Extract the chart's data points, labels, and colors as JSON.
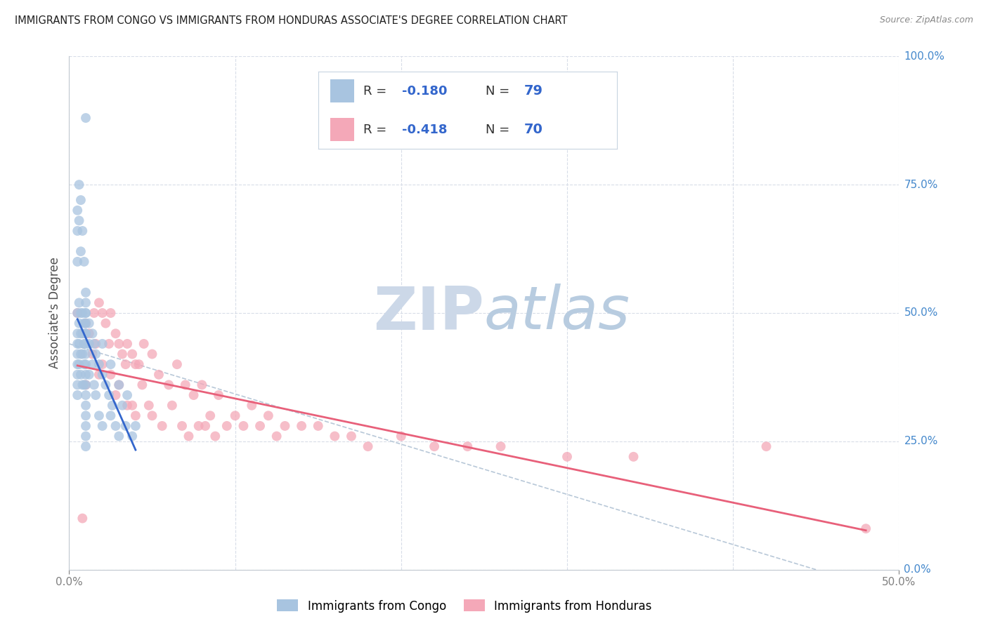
{
  "title": "IMMIGRANTS FROM CONGO VS IMMIGRANTS FROM HONDURAS ASSOCIATE'S DEGREE CORRELATION CHART",
  "source": "Source: ZipAtlas.com",
  "ylabel": "Associate's Degree",
  "right_yticklabels": [
    "0.0%",
    "25.0%",
    "50.0%",
    "75.0%",
    "100.0%"
  ],
  "right_ytick_vals": [
    0.0,
    0.25,
    0.5,
    0.75,
    1.0
  ],
  "xlim": [
    0.0,
    0.5
  ],
  "ylim": [
    0.0,
    1.0
  ],
  "xtick_positions": [
    0.0,
    0.1,
    0.2,
    0.3,
    0.4,
    0.5
  ],
  "xtick_labels": [
    "0.0%",
    "",
    "",
    "",
    "",
    "50.0%"
  ],
  "legend_r_congo": "-0.180",
  "legend_n_congo": "79",
  "legend_r_honduras": "-0.418",
  "legend_n_honduras": "70",
  "congo_color": "#a8c4e0",
  "honduras_color": "#f4a8b8",
  "congo_line_color": "#3366cc",
  "honduras_line_color": "#e8607a",
  "dashed_line_color": "#b8c8d8",
  "watermark_zip_color": "#c8d8e8",
  "watermark_atlas_color": "#b0c4d8",
  "background_color": "#ffffff",
  "grid_color": "#d8dde8",
  "title_color": "#202020",
  "right_axis_color": "#4488cc",
  "legend_text_color": "#222222",
  "legend_value_color": "#3366cc",
  "congo_scatter_x": [
    0.005,
    0.005,
    0.005,
    0.005,
    0.005,
    0.005,
    0.005,
    0.005,
    0.006,
    0.006,
    0.006,
    0.006,
    0.007,
    0.007,
    0.007,
    0.007,
    0.008,
    0.008,
    0.008,
    0.008,
    0.009,
    0.009,
    0.009,
    0.009,
    0.01,
    0.01,
    0.01,
    0.01,
    0.01,
    0.01,
    0.01,
    0.01,
    0.01,
    0.01,
    0.01,
    0.01,
    0.01,
    0.01,
    0.01,
    0.01,
    0.01,
    0.01,
    0.012,
    0.012,
    0.012,
    0.014,
    0.014,
    0.015,
    0.015,
    0.016,
    0.016,
    0.018,
    0.018,
    0.02,
    0.02,
    0.02,
    0.022,
    0.024,
    0.025,
    0.025,
    0.026,
    0.028,
    0.03,
    0.03,
    0.032,
    0.034,
    0.035,
    0.038,
    0.04,
    0.005,
    0.005,
    0.005,
    0.006,
    0.006,
    0.007,
    0.007,
    0.008,
    0.009,
    0.01
  ],
  "congo_scatter_y": [
    0.5,
    0.46,
    0.44,
    0.42,
    0.4,
    0.38,
    0.36,
    0.34,
    0.52,
    0.48,
    0.44,
    0.4,
    0.5,
    0.46,
    0.42,
    0.38,
    0.5,
    0.46,
    0.42,
    0.36,
    0.48,
    0.44,
    0.4,
    0.36,
    0.54,
    0.52,
    0.5,
    0.48,
    0.46,
    0.44,
    0.42,
    0.4,
    0.38,
    0.36,
    0.34,
    0.32,
    0.3,
    0.28,
    0.26,
    0.24,
    0.5,
    0.46,
    0.48,
    0.44,
    0.38,
    0.46,
    0.4,
    0.44,
    0.36,
    0.42,
    0.34,
    0.4,
    0.3,
    0.44,
    0.38,
    0.28,
    0.36,
    0.34,
    0.4,
    0.3,
    0.32,
    0.28,
    0.36,
    0.26,
    0.32,
    0.28,
    0.34,
    0.26,
    0.28,
    0.7,
    0.66,
    0.6,
    0.75,
    0.68,
    0.72,
    0.62,
    0.66,
    0.6,
    0.88
  ],
  "honduras_scatter_x": [
    0.005,
    0.008,
    0.01,
    0.01,
    0.012,
    0.014,
    0.015,
    0.016,
    0.018,
    0.018,
    0.02,
    0.02,
    0.022,
    0.024,
    0.025,
    0.025,
    0.028,
    0.028,
    0.03,
    0.03,
    0.032,
    0.034,
    0.035,
    0.035,
    0.038,
    0.038,
    0.04,
    0.04,
    0.042,
    0.044,
    0.045,
    0.048,
    0.05,
    0.05,
    0.054,
    0.056,
    0.06,
    0.062,
    0.065,
    0.068,
    0.07,
    0.072,
    0.075,
    0.078,
    0.08,
    0.082,
    0.085,
    0.088,
    0.09,
    0.095,
    0.1,
    0.105,
    0.11,
    0.115,
    0.12,
    0.125,
    0.13,
    0.14,
    0.15,
    0.16,
    0.17,
    0.18,
    0.2,
    0.22,
    0.24,
    0.26,
    0.3,
    0.34,
    0.42,
    0.48
  ],
  "honduras_scatter_y": [
    0.5,
    0.1,
    0.48,
    0.36,
    0.46,
    0.42,
    0.5,
    0.44,
    0.52,
    0.38,
    0.5,
    0.4,
    0.48,
    0.44,
    0.5,
    0.38,
    0.46,
    0.34,
    0.44,
    0.36,
    0.42,
    0.4,
    0.44,
    0.32,
    0.42,
    0.32,
    0.4,
    0.3,
    0.4,
    0.36,
    0.44,
    0.32,
    0.42,
    0.3,
    0.38,
    0.28,
    0.36,
    0.32,
    0.4,
    0.28,
    0.36,
    0.26,
    0.34,
    0.28,
    0.36,
    0.28,
    0.3,
    0.26,
    0.34,
    0.28,
    0.3,
    0.28,
    0.32,
    0.28,
    0.3,
    0.26,
    0.28,
    0.28,
    0.28,
    0.26,
    0.26,
    0.24,
    0.26,
    0.24,
    0.24,
    0.24,
    0.22,
    0.22,
    0.24,
    0.08
  ]
}
